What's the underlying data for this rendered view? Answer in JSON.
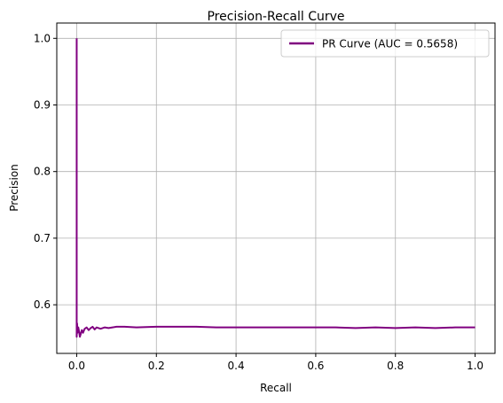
{
  "chart_data": {
    "type": "line",
    "title": "Precision-Recall Curve",
    "xlabel": "Recall",
    "ylabel": "Precision",
    "xlim": [
      -0.05,
      1.05
    ],
    "ylim": [
      0.527,
      1.023
    ],
    "xticks": [
      0.0,
      0.2,
      0.4,
      0.6,
      0.8,
      1.0
    ],
    "yticks": [
      0.6,
      0.7,
      0.8,
      0.9,
      1.0
    ],
    "xtick_labels": [
      "0.0",
      "0.2",
      "0.4",
      "0.6",
      "0.8",
      "1.0"
    ],
    "ytick_labels": [
      "0.6",
      "0.7",
      "0.8",
      "0.9",
      "1.0"
    ],
    "grid": true,
    "legend_position": "top-right",
    "series": [
      {
        "name": "PR Curve (AUC = 0.5658)",
        "color": "#800080",
        "x": [
          0.0,
          0.0,
          0.001,
          0.002,
          0.004,
          0.006,
          0.008,
          0.01,
          0.013,
          0.016,
          0.02,
          0.025,
          0.03,
          0.035,
          0.04,
          0.045,
          0.05,
          0.06,
          0.07,
          0.08,
          0.09,
          0.1,
          0.12,
          0.15,
          0.2,
          0.25,
          0.3,
          0.35,
          0.4,
          0.45,
          0.5,
          0.55,
          0.6,
          0.65,
          0.7,
          0.75,
          0.8,
          0.85,
          0.9,
          0.95,
          1.0
        ],
        "y": [
          1.0,
          0.552,
          0.572,
          0.558,
          0.566,
          0.56,
          0.552,
          0.556,
          0.562,
          0.558,
          0.564,
          0.566,
          0.562,
          0.565,
          0.567,
          0.563,
          0.566,
          0.564,
          0.566,
          0.565,
          0.566,
          0.567,
          0.567,
          0.566,
          0.567,
          0.567,
          0.567,
          0.566,
          0.566,
          0.566,
          0.566,
          0.566,
          0.566,
          0.566,
          0.565,
          0.566,
          0.565,
          0.566,
          0.565,
          0.566,
          0.566
        ]
      }
    ]
  }
}
